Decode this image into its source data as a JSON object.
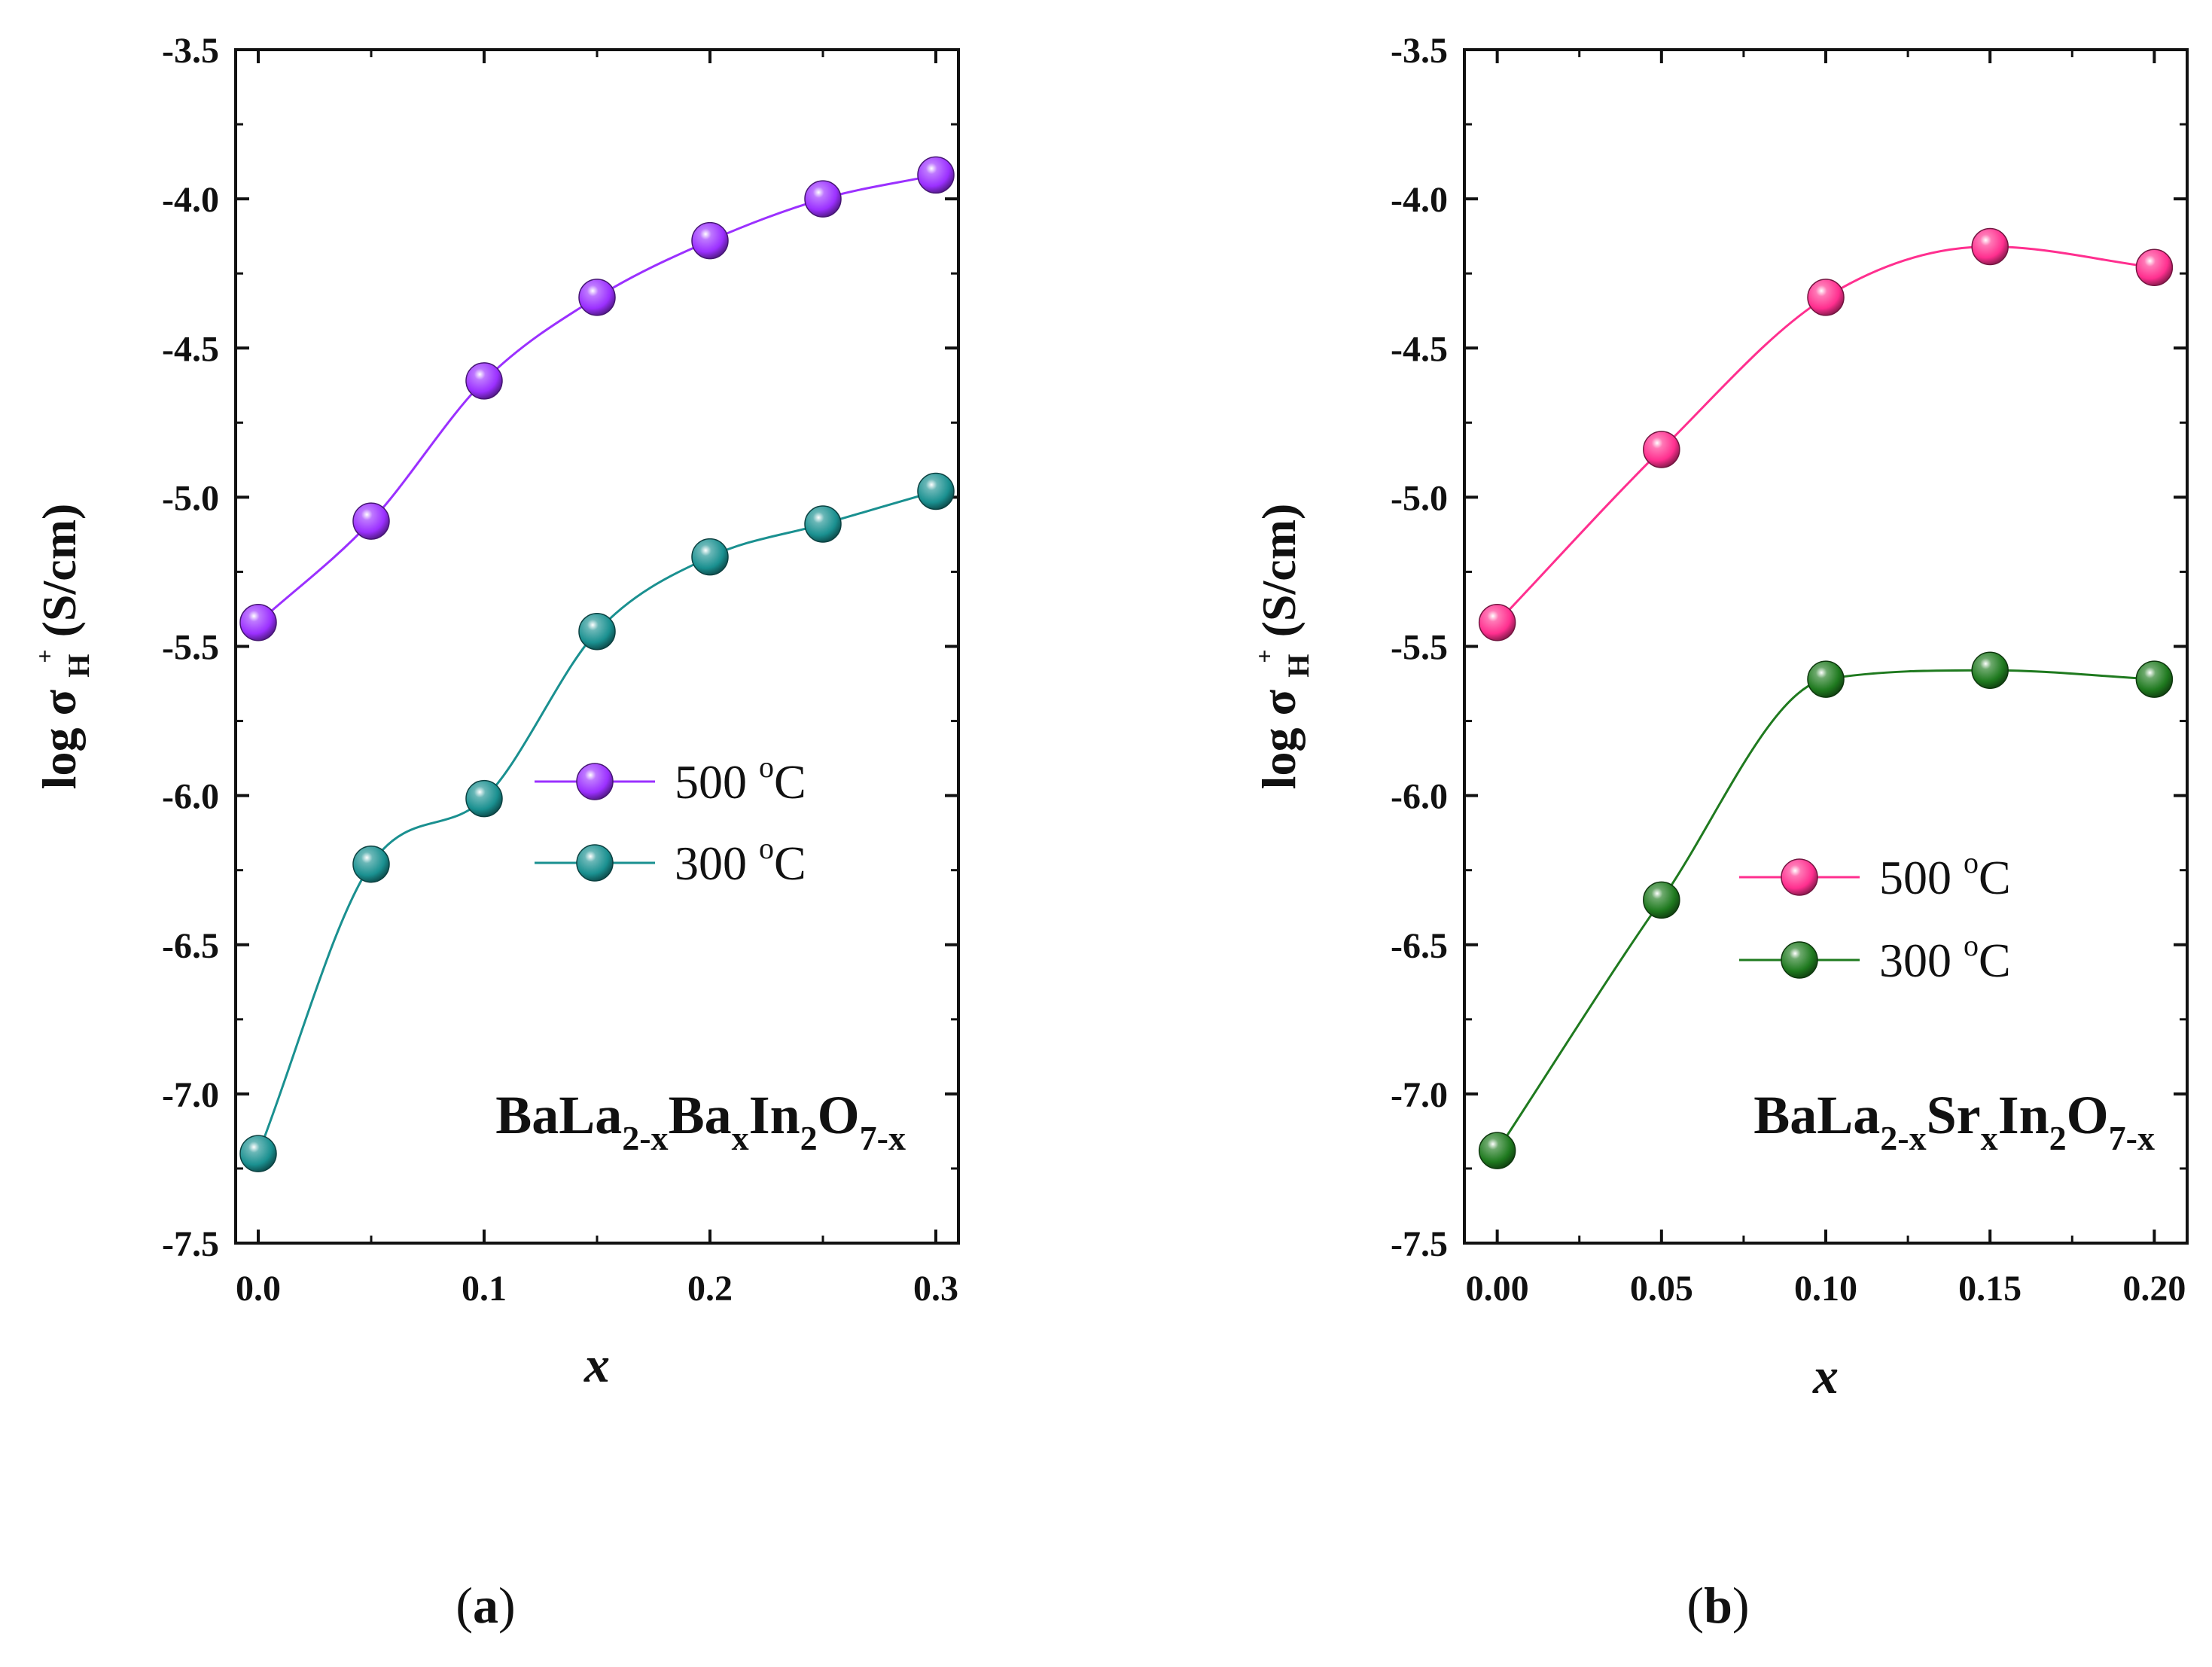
{
  "chart_data": [
    {
      "type": "line",
      "panel_label": "a",
      "xlabel": "x",
      "ylabel_main": "log σ",
      "ylabel_sub": "H",
      "ylabel_sup": "+",
      "ylabel_unit": "(S/cm)",
      "xlim": [
        -0.01,
        0.31
      ],
      "ylim": [
        -7.5,
        -3.5
      ],
      "xticks": [
        0.0,
        0.1,
        0.2,
        0.3
      ],
      "xtick_labels": [
        "0.0",
        "0.1",
        "0.2",
        "0.3"
      ],
      "yticks": [
        -3.5,
        -4.0,
        -4.5,
        -5.0,
        -5.5,
        -6.0,
        -6.5,
        -7.0,
        -7.5
      ],
      "ytick_labels": [
        "-3.5",
        "-4.0",
        "-4.5",
        "-5.0",
        "-5.5",
        "-6.0",
        "-6.5",
        "-7.0",
        "-7.5"
      ],
      "x": [
        0.0,
        0.05,
        0.1,
        0.15,
        0.2,
        0.25,
        0.3
      ],
      "series": [
        {
          "name": "500 °C",
          "legend_value": "500",
          "legend_unit_sup": "o",
          "legend_unit": "C",
          "color": "#9b30ff",
          "values": [
            -5.42,
            -5.08,
            -4.61,
            -4.33,
            -4.14,
            -4.0,
            -3.92
          ]
        },
        {
          "name": "300 °C",
          "legend_value": "300",
          "legend_unit_sup": "o",
          "legend_unit": "C",
          "color": "#1a9090",
          "values": [
            -7.2,
            -6.23,
            -6.01,
            -5.45,
            -5.2,
            -5.09,
            -4.98
          ]
        }
      ],
      "legend_position": "center-right",
      "annotation": {
        "parts": [
          [
            "BaLa",
            "n"
          ],
          [
            "2-x",
            "sub"
          ],
          [
            "Ba",
            "n"
          ],
          [
            "x",
            "sub"
          ],
          [
            "In",
            "n"
          ],
          [
            "2",
            "sub"
          ],
          [
            "O",
            "n"
          ],
          [
            "7-x",
            "sub"
          ]
        ]
      }
    },
    {
      "type": "line",
      "panel_label": "b",
      "xlabel": "x",
      "ylabel_main": "log σ",
      "ylabel_sub": "H",
      "ylabel_sup": "+",
      "ylabel_unit": "(S/cm)",
      "xlim": [
        -0.01,
        0.21
      ],
      "ylim": [
        -7.5,
        -3.5
      ],
      "xticks": [
        0.0,
        0.05,
        0.1,
        0.15,
        0.2
      ],
      "xtick_labels": [
        "0.00",
        "0.05",
        "0.10",
        "0.15",
        "0.20"
      ],
      "yticks": [
        -3.5,
        -4.0,
        -4.5,
        -5.0,
        -5.5,
        -6.0,
        -6.5,
        -7.0,
        -7.5
      ],
      "ytick_labels": [
        "-3.5",
        "-4.0",
        "-4.5",
        "-5.0",
        "-5.5",
        "-6.0",
        "-6.5",
        "-7.0",
        "-7.5"
      ],
      "x": [
        0.0,
        0.05,
        0.1,
        0.15,
        0.2
      ],
      "series": [
        {
          "name": "500 °C",
          "legend_value": "500",
          "legend_unit_sup": "o",
          "legend_unit": "C",
          "color": "#ff2f8f",
          "values": [
            -5.42,
            -4.84,
            -4.33,
            -4.16,
            -4.23
          ]
        },
        {
          "name": "300 °C",
          "legend_value": "300",
          "legend_unit_sup": "o",
          "legend_unit": "C",
          "color": "#1f7a1f",
          "values": [
            -7.19,
            -6.35,
            -5.61,
            -5.58,
            -5.61
          ]
        }
      ],
      "legend_position": "center-right",
      "annotation": {
        "parts": [
          [
            "BaLa",
            "n"
          ],
          [
            "2-x",
            "sub"
          ],
          [
            "Sr",
            "n"
          ],
          [
            "x",
            "sub"
          ],
          [
            "In",
            "n"
          ],
          [
            "2",
            "sub"
          ],
          [
            "O",
            "n"
          ],
          [
            "7-x",
            "sub"
          ]
        ]
      }
    }
  ]
}
